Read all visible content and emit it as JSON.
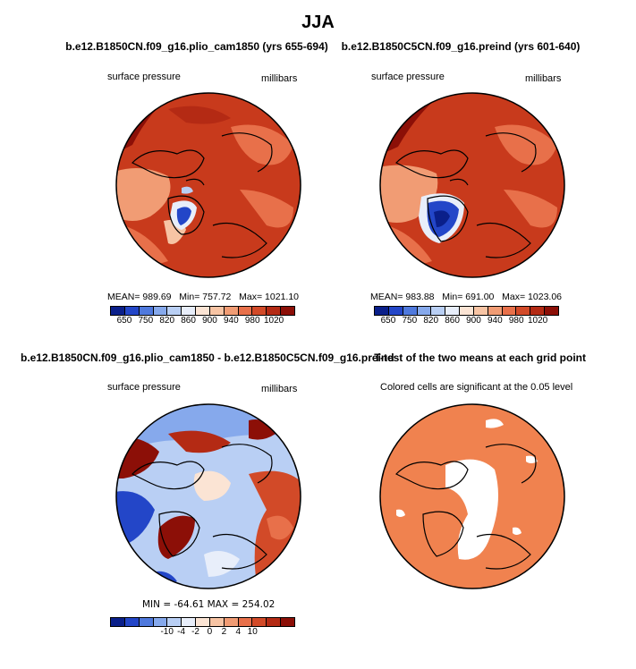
{
  "figure": {
    "title": "JJA"
  },
  "chart_data": [
    {
      "type": "heatmap",
      "projection": "polar-stereographic (north)",
      "title": "b.e12.B1850CN.f09_g16.plio_cam1850 (yrs 655-694)",
      "left_label": "surface pressure",
      "right_label": "millibars",
      "stats": {
        "mean_label": "MEAN=",
        "mean": "989.69",
        "min_label": "Min=",
        "min": "757.72",
        "max_label": "Max=",
        "max": "1021.10"
      },
      "colorbar": {
        "colors": [
          "#0a1f8a",
          "#2346c8",
          "#4f79dd",
          "#86a9ec",
          "#b9cff4",
          "#e8eefa",
          "#fbe4d4",
          "#f7c4a4",
          "#f19c74",
          "#e8704a",
          "#d24a28",
          "#b42a14",
          "#8c0f07"
        ],
        "tick_labels": [
          "650",
          "750",
          "820",
          "860",
          "900",
          "940",
          "980",
          "1020"
        ]
      }
    },
    {
      "type": "heatmap",
      "projection": "polar-stereographic (north)",
      "title": "b.e12.B1850C5CN.f09_g16.preind (yrs 601-640)",
      "left_label": "surface pressure",
      "right_label": "millibars",
      "stats": {
        "mean_label": "MEAN=",
        "mean": "983.88",
        "min_label": "Min=",
        "min": "691.00",
        "max_label": "Max=",
        "max": "1023.06"
      },
      "colorbar": {
        "colors": [
          "#0a1f8a",
          "#2346c8",
          "#4f79dd",
          "#86a9ec",
          "#b9cff4",
          "#e8eefa",
          "#fbe4d4",
          "#f7c4a4",
          "#f19c74",
          "#e8704a",
          "#d24a28",
          "#b42a14",
          "#8c0f07"
        ],
        "tick_labels": [
          "650",
          "750",
          "820",
          "860",
          "900",
          "940",
          "980",
          "1020"
        ]
      }
    },
    {
      "type": "heatmap",
      "projection": "polar-stereographic (north)",
      "title": "b.e12.B1850CN.f09_g16.plio_cam1850 - b.e12.B1850C5CN.f09_g16.preind",
      "left_label": "surface pressure",
      "right_label": "millibars",
      "stats": {
        "text": "MIN = -64.61  MAX = 254.02"
      },
      "colorbar": {
        "colors": [
          "#0a1f8a",
          "#2346c8",
          "#4f79dd",
          "#86a9ec",
          "#b9cff4",
          "#e8eefa",
          "#fbe4d4",
          "#f7c4a4",
          "#f19c74",
          "#e8704a",
          "#d24a28",
          "#b42a14",
          "#8c0f07"
        ],
        "tick_labels": [
          "-10",
          "-4",
          "-2",
          "0",
          "2",
          "4",
          "10"
        ]
      }
    },
    {
      "type": "heatmap",
      "projection": "polar-stereographic (north)",
      "title": "T-test of the two means at each grid point",
      "left_label": "Colored cells are significant at the 0.05 level",
      "right_label": ""
    }
  ]
}
